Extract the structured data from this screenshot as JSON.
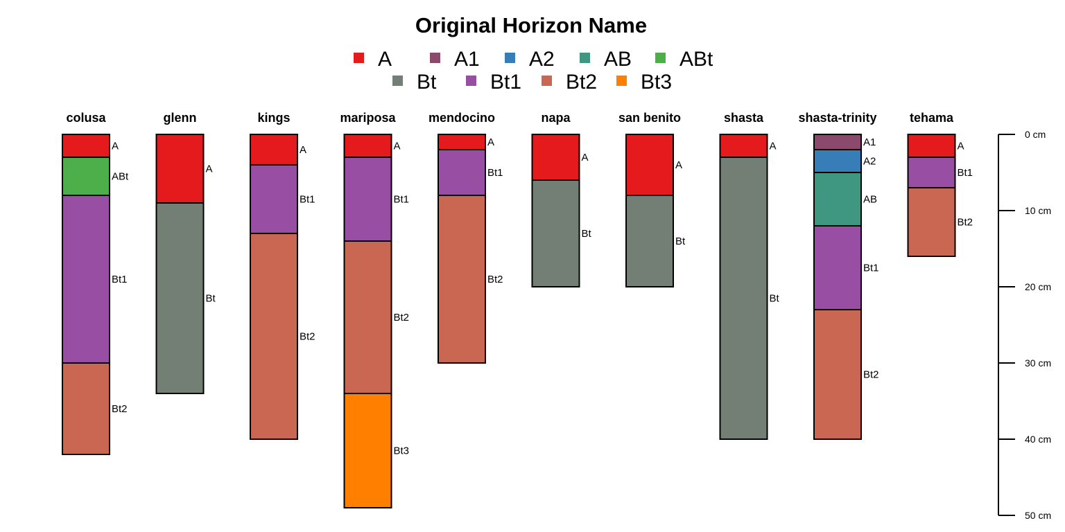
{
  "chart_data": {
    "type": "soil-profile",
    "title": "Original Horizon Name",
    "depth_unit": "cm",
    "depth_ticks": [
      0,
      10,
      20,
      30,
      40,
      50
    ],
    "depth_range": [
      0,
      50
    ],
    "legend": [
      {
        "name": "A",
        "color": "#E41A1C"
      },
      {
        "name": "A1",
        "color": "#8B4A6B"
      },
      {
        "name": "A2",
        "color": "#377EB8"
      },
      {
        "name": "AB",
        "color": "#3F9681"
      },
      {
        "name": "ABt",
        "color": "#4DAF4A"
      },
      {
        "name": "Bt",
        "color": "#737F75"
      },
      {
        "name": "Bt1",
        "color": "#984EA3"
      },
      {
        "name": "Bt2",
        "color": "#CA6752"
      },
      {
        "name": "Bt3",
        "color": "#FF7F00"
      }
    ],
    "profiles": [
      {
        "name": "colusa",
        "horizons": [
          {
            "hz": "A",
            "top": 0,
            "bottom": 3
          },
          {
            "hz": "ABt",
            "top": 3,
            "bottom": 8
          },
          {
            "hz": "Bt1",
            "top": 8,
            "bottom": 30
          },
          {
            "hz": "Bt2",
            "top": 30,
            "bottom": 42
          }
        ]
      },
      {
        "name": "glenn",
        "horizons": [
          {
            "hz": "A",
            "top": 0,
            "bottom": 9
          },
          {
            "hz": "Bt",
            "top": 9,
            "bottom": 34
          }
        ]
      },
      {
        "name": "kings",
        "horizons": [
          {
            "hz": "A",
            "top": 0,
            "bottom": 4
          },
          {
            "hz": "Bt1",
            "top": 4,
            "bottom": 13
          },
          {
            "hz": "Bt2",
            "top": 13,
            "bottom": 40
          }
        ]
      },
      {
        "name": "mariposa",
        "horizons": [
          {
            "hz": "A",
            "top": 0,
            "bottom": 3
          },
          {
            "hz": "Bt1",
            "top": 3,
            "bottom": 14
          },
          {
            "hz": "Bt2",
            "top": 14,
            "bottom": 34
          },
          {
            "hz": "Bt3",
            "top": 34,
            "bottom": 49
          }
        ]
      },
      {
        "name": "mendocino",
        "horizons": [
          {
            "hz": "A",
            "top": 0,
            "bottom": 2
          },
          {
            "hz": "Bt1",
            "top": 2,
            "bottom": 8
          },
          {
            "hz": "Bt2",
            "top": 8,
            "bottom": 30
          }
        ]
      },
      {
        "name": "napa",
        "horizons": [
          {
            "hz": "A",
            "top": 0,
            "bottom": 6
          },
          {
            "hz": "Bt",
            "top": 6,
            "bottom": 20
          }
        ]
      },
      {
        "name": "san benito",
        "horizons": [
          {
            "hz": "A",
            "top": 0,
            "bottom": 8
          },
          {
            "hz": "Bt",
            "top": 8,
            "bottom": 20
          }
        ]
      },
      {
        "name": "shasta",
        "horizons": [
          {
            "hz": "A",
            "top": 0,
            "bottom": 3
          },
          {
            "hz": "Bt",
            "top": 3,
            "bottom": 40
          }
        ]
      },
      {
        "name": "shasta-trinity",
        "horizons": [
          {
            "hz": "A1",
            "top": 0,
            "bottom": 2
          },
          {
            "hz": "A2",
            "top": 2,
            "bottom": 5
          },
          {
            "hz": "AB",
            "top": 5,
            "bottom": 12
          },
          {
            "hz": "Bt1",
            "top": 12,
            "bottom": 23
          },
          {
            "hz": "Bt2",
            "top": 23,
            "bottom": 40
          }
        ]
      },
      {
        "name": "tehama",
        "horizons": [
          {
            "hz": "A",
            "top": 0,
            "bottom": 3
          },
          {
            "hz": "Bt1",
            "top": 3,
            "bottom": 7
          },
          {
            "hz": "Bt2",
            "top": 7,
            "bottom": 16
          }
        ]
      }
    ]
  }
}
